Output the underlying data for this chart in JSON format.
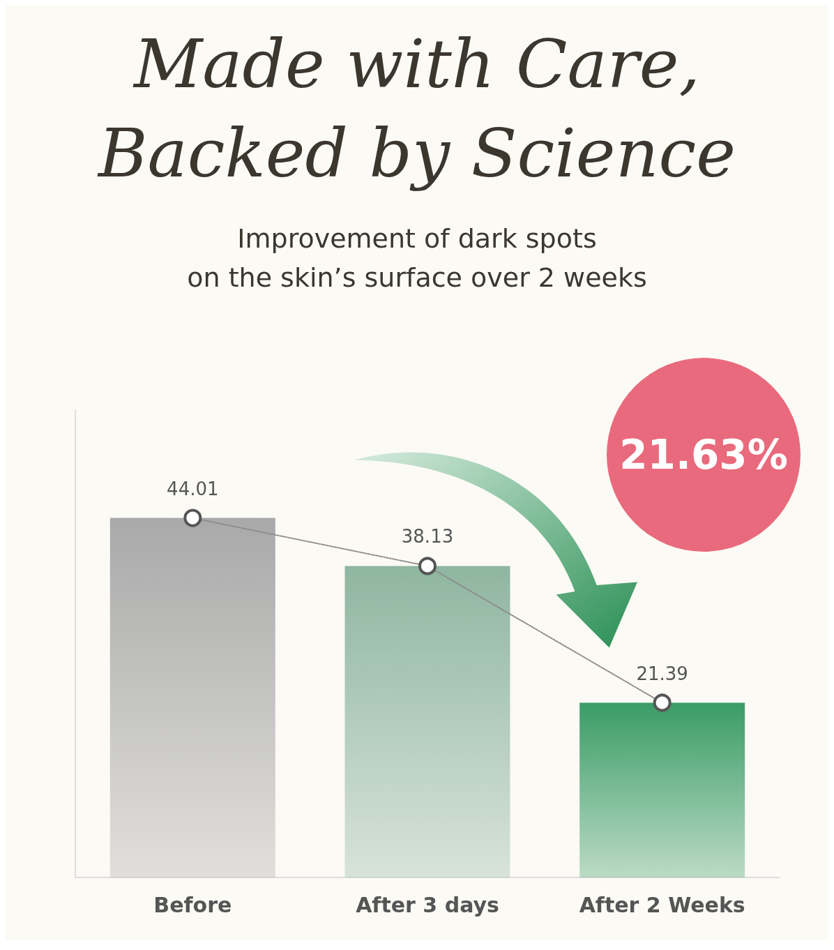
{
  "chart_data": {
    "type": "bar",
    "title": "Made with Care,\nBacked by Science",
    "subtitle": "Improvement of dark spots\non the skin’s surface over 2 weeks",
    "categories": [
      "Before",
      "After 3 days",
      "After 2 Weeks"
    ],
    "series": [
      {
        "colors": [
          "#a9a9a9",
          "#8fb6a0",
          "#3a9c66"
        ],
        "values": [
          44.01,
          38.13,
          21.39
        ]
      },
      {
        "type": "line",
        "color": "#8c8c8c",
        "values": [
          44.01,
          38.13,
          21.39
        ],
        "marker": "circle",
        "line_style": "dotted",
        "value_labels": [
          "44.01",
          "38.13",
          "21.39"
        ]
      }
    ],
    "tick_labels": "x",
    "grid": false,
    "annotations": [
      "21.63%"
    ]
  }
}
